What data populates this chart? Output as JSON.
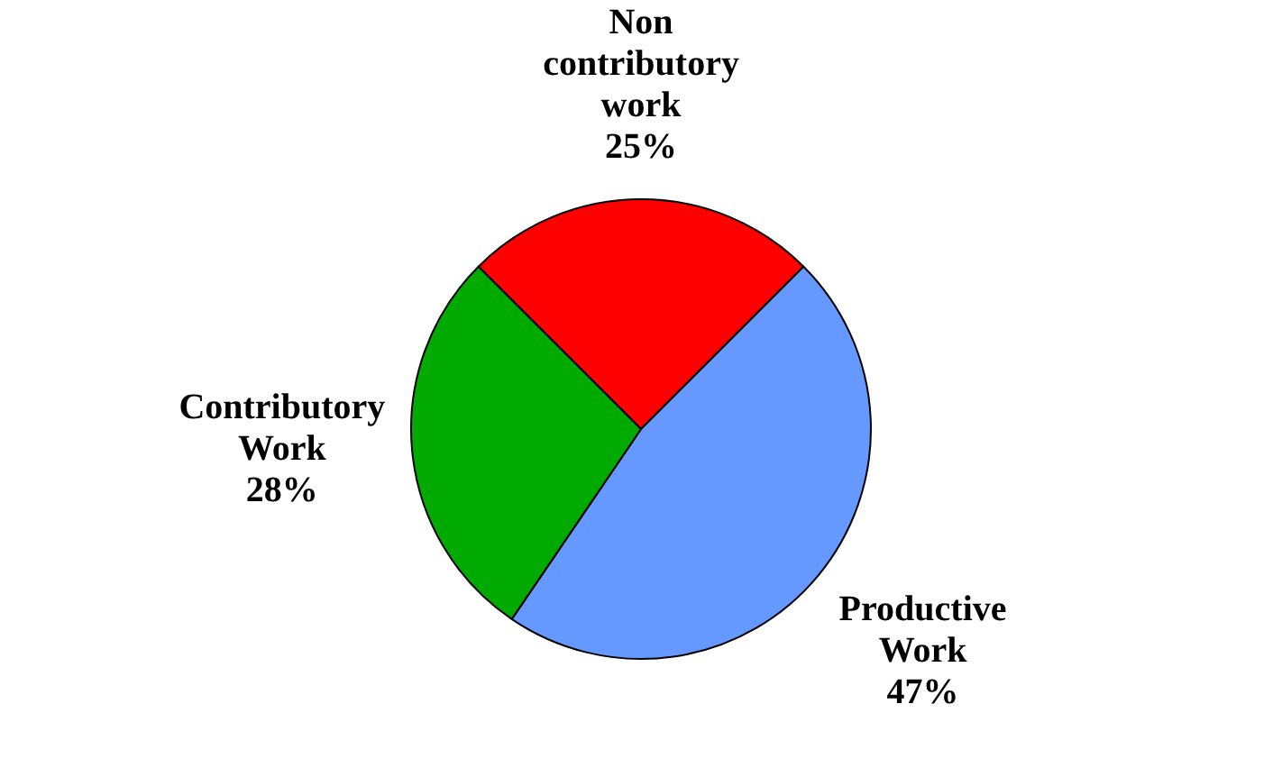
{
  "chart_data": {
    "type": "pie",
    "categories": [
      "Non contributory work",
      "Productive Work",
      "Contributory Work"
    ],
    "values": [
      25,
      47,
      28
    ],
    "colors": [
      "#ff0000",
      "#6699ff",
      "#00aa00"
    ],
    "value_labels": [
      "25%",
      "47%",
      "28%"
    ],
    "legend": false
  }
}
